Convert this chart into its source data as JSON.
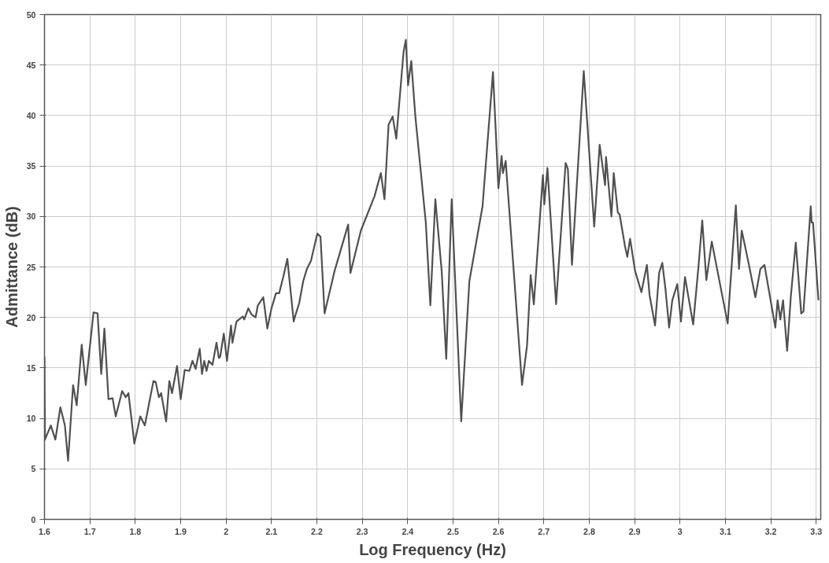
{
  "chart_data": {
    "type": "line",
    "xlabel": "Log Frequency (Hz)",
    "ylabel": "Admittance (dB)",
    "xlim": [
      1.6,
      3.31
    ],
    "ylim": [
      0,
      50
    ],
    "xticks": [
      1.6,
      1.7,
      1.8,
      1.9,
      2,
      2.1,
      2.2,
      2.3,
      2.4,
      2.5,
      2.6,
      2.7,
      2.8,
      2.9,
      3,
      3.1,
      3.2,
      3.3
    ],
    "yticks": [
      0,
      5,
      10,
      15,
      20,
      25,
      30,
      35,
      40,
      45,
      50
    ],
    "grid": true,
    "marker": "none",
    "line_style": "solid",
    "series": [
      {
        "color": "#505050",
        "x": [
          1.6,
          1.601,
          1.614,
          1.624,
          1.635,
          1.645,
          1.652,
          1.663,
          1.671,
          1.682,
          1.691,
          1.708,
          1.717,
          1.725,
          1.732,
          1.741,
          1.75,
          1.757,
          1.771,
          1.779,
          1.785,
          1.798,
          1.811,
          1.821,
          1.84,
          1.845,
          1.852,
          1.857,
          1.868,
          1.875,
          1.881,
          1.892,
          1.9,
          1.909,
          1.919,
          1.926,
          1.933,
          1.942,
          1.947,
          1.952,
          1.957,
          1.962,
          1.97,
          1.979,
          1.984,
          1.987,
          1.995,
          2.002,
          2.011,
          2.014,
          2.023,
          2.037,
          2.04,
          2.049,
          2.056,
          2.065,
          2.07,
          2.082,
          2.091,
          2.1,
          2.11,
          2.117,
          2.126,
          2.135,
          2.149,
          2.152,
          2.161,
          2.17,
          2.178,
          2.187,
          2.201,
          2.208,
          2.217,
          2.239,
          2.269,
          2.274,
          2.297,
          2.327,
          2.341,
          2.349,
          2.358,
          2.367,
          2.375,
          2.391,
          2.396,
          2.401,
          2.408,
          2.417,
          2.44,
          2.45,
          2.461,
          2.475,
          2.485,
          2.497,
          2.518,
          2.536,
          2.565,
          2.588,
          2.6,
          2.607,
          2.61,
          2.616,
          2.652,
          2.663,
          2.671,
          2.678,
          2.698,
          2.701,
          2.708,
          2.727,
          2.748,
          2.753,
          2.762,
          2.788,
          2.811,
          2.823,
          2.835,
          2.837,
          2.849,
          2.854,
          2.863,
          2.867,
          2.879,
          2.884,
          2.89,
          2.901,
          2.915,
          2.927,
          2.933,
          2.945,
          2.954,
          2.961,
          2.968,
          2.976,
          2.983,
          2.994,
          3.002,
          3.011,
          3.029,
          3.041,
          3.049,
          3.058,
          3.07,
          3.105,
          3.123,
          3.13,
          3.136,
          3.151,
          3.166,
          3.177,
          3.186,
          3.21,
          3.215,
          3.221,
          3.227,
          3.236,
          3.244,
          3.255,
          3.267,
          3.272,
          3.288,
          3.29,
          3.293,
          3.305
        ],
        "values": [
          16.1,
          7.9,
          9.3,
          7.9,
          11.1,
          9.3,
          5.8,
          13.3,
          11.3,
          17.3,
          13.3,
          20.5,
          20.4,
          14.4,
          18.9,
          11.9,
          12,
          10.2,
          12.7,
          12.1,
          12.5,
          7.5,
          10.2,
          9.3,
          13.7,
          13.6,
          12.1,
          12.5,
          9.7,
          13.7,
          12.5,
          15.2,
          11.9,
          14.8,
          14.7,
          15.7,
          14.9,
          16.9,
          14.4,
          15.7,
          14.7,
          15.7,
          15.3,
          17.5,
          16,
          16.1,
          18.4,
          15.7,
          19.2,
          17.5,
          19.6,
          20.1,
          19.8,
          20.9,
          20.3,
          20,
          21.2,
          22,
          18.9,
          20.9,
          22.4,
          22.4,
          24,
          25.8,
          19.6,
          20.1,
          21.4,
          23.6,
          24.8,
          25.6,
          28.3,
          28,
          20.4,
          24.6,
          29.2,
          24.4,
          28.6,
          32,
          34.3,
          31.7,
          39.1,
          39.9,
          37.7,
          46.3,
          47.5,
          43,
          45.4,
          39.9,
          29.4,
          21.2,
          31.7,
          24.6,
          15.9,
          31.7,
          9.7,
          23.6,
          31,
          44.3,
          32.8,
          36,
          34.3,
          35.5,
          13.3,
          17.2,
          24.2,
          21.3,
          34.1,
          31.2,
          34.8,
          21.3,
          35.3,
          34.7,
          25.2,
          44.4,
          29,
          37.1,
          33.1,
          35.9,
          30,
          34.3,
          30.4,
          30.2,
          27,
          26,
          27.8,
          24.6,
          22.5,
          25.2,
          22.2,
          19.2,
          24.4,
          25.4,
          22.8,
          19,
          21.7,
          23.3,
          19.6,
          24,
          19.3,
          25.2,
          29.6,
          23.7,
          27.5,
          19.4,
          31.1,
          24.8,
          28.6,
          25.4,
          22,
          24.8,
          25.2,
          19,
          21.7,
          19.8,
          21.7,
          16.7,
          22,
          27.4,
          20.4,
          20.6,
          31,
          29.4,
          29.4,
          21.7
        ]
      }
    ]
  }
}
